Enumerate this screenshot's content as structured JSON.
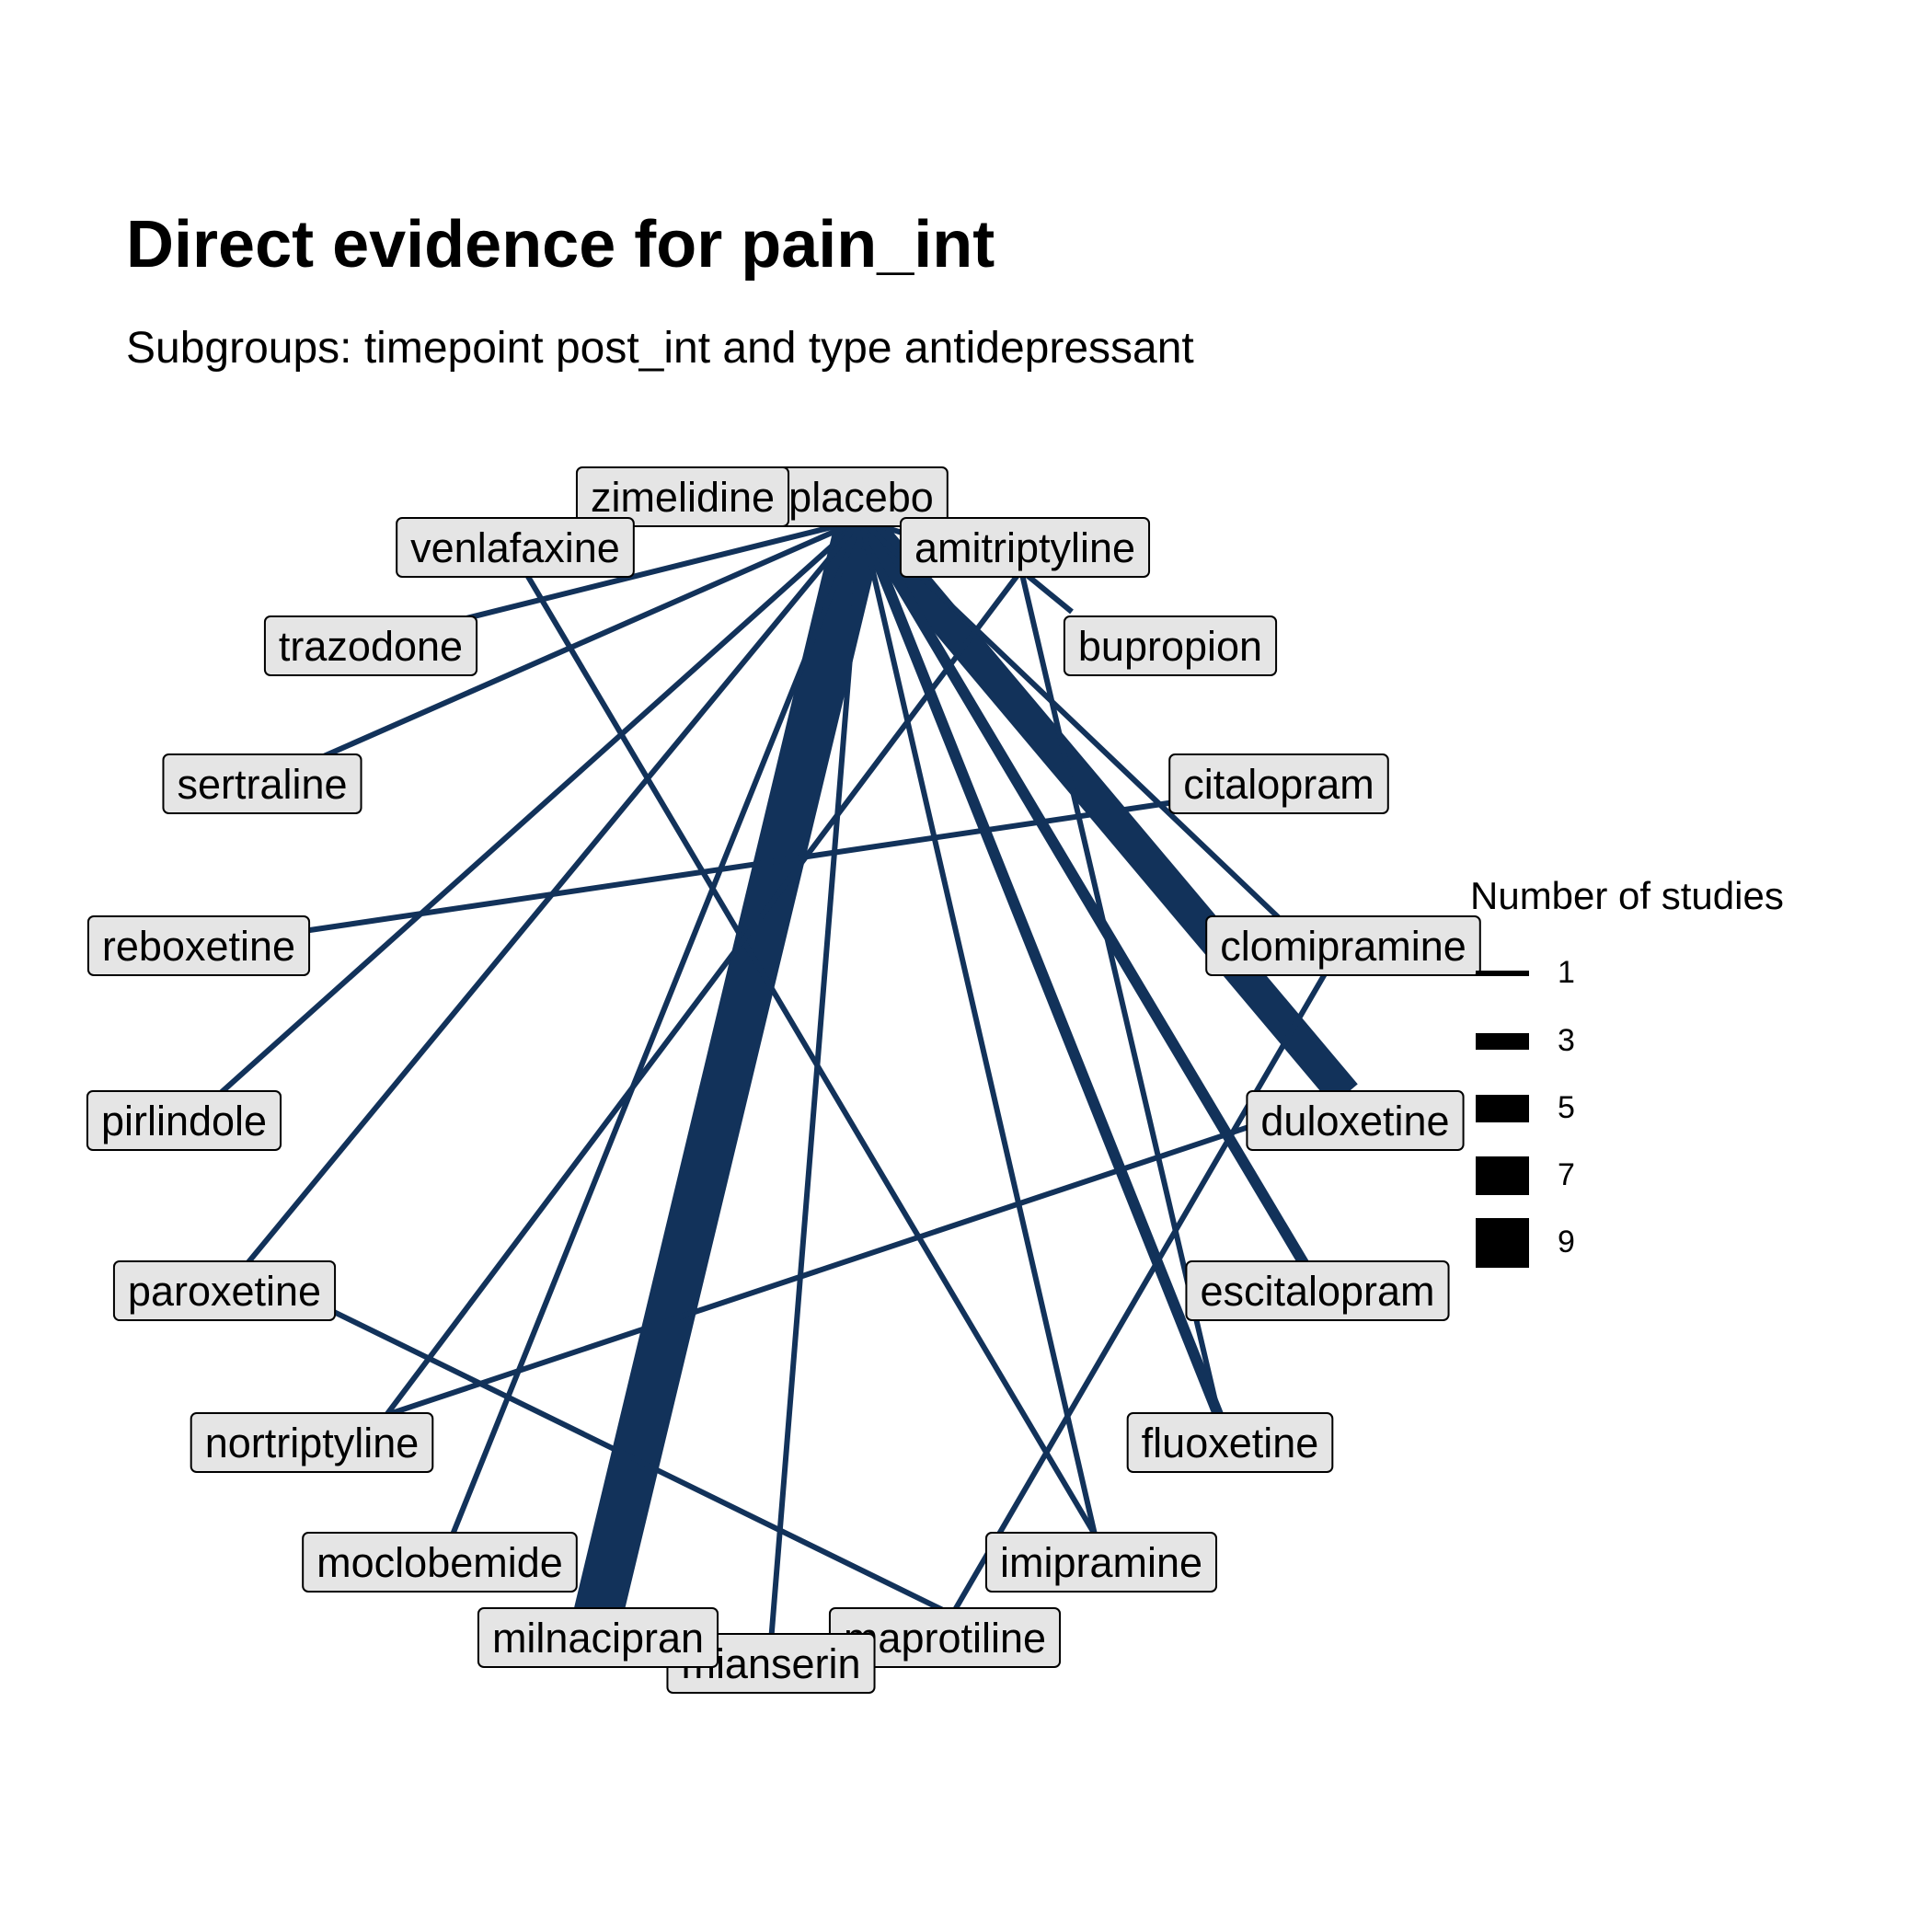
{
  "title": "Direct evidence for pain_int",
  "subtitle": "Subgroups: timepoint post_int and type antidepressant",
  "edge_color": "#12325a",
  "label_fill": "#e5e5e5",
  "legend": {
    "title": "Number of studies",
    "entries": [
      "1",
      "3",
      "5",
      "7",
      "9"
    ]
  },
  "nodes": [
    {
      "id": "placebo",
      "label": "placebo"
    },
    {
      "id": "zimelidine",
      "label": "zimelidine"
    },
    {
      "id": "venlafaxine",
      "label": "venlafaxine"
    },
    {
      "id": "amitriptyline",
      "label": "amitriptyline"
    },
    {
      "id": "trazodone",
      "label": "trazodone"
    },
    {
      "id": "bupropion",
      "label": "bupropion"
    },
    {
      "id": "sertraline",
      "label": "sertraline"
    },
    {
      "id": "citalopram",
      "label": "citalopram"
    },
    {
      "id": "reboxetine",
      "label": "reboxetine"
    },
    {
      "id": "clomipramine",
      "label": "clomipramine"
    },
    {
      "id": "pirlindole",
      "label": "pirlindole"
    },
    {
      "id": "duloxetine",
      "label": "duloxetine"
    },
    {
      "id": "paroxetine",
      "label": "paroxetine"
    },
    {
      "id": "escitalopram",
      "label": "escitalopram"
    },
    {
      "id": "nortriptyline",
      "label": "nortriptyline"
    },
    {
      "id": "fluoxetine",
      "label": "fluoxetine"
    },
    {
      "id": "moclobemide",
      "label": "moclobemide"
    },
    {
      "id": "imipramine",
      "label": "imipramine"
    },
    {
      "id": "milnacipran",
      "label": "milnacipran"
    },
    {
      "id": "maprotiline",
      "label": "maprotiline"
    },
    {
      "id": "mianserin",
      "label": "mianserin"
    }
  ],
  "edges": [
    {
      "from": "placebo",
      "to": "milnacipran",
      "studies": 9
    },
    {
      "from": "placebo",
      "to": "duloxetine",
      "studies": 6
    },
    {
      "from": "placebo",
      "to": "fluoxetine",
      "studies": 2
    },
    {
      "from": "placebo",
      "to": "escitalopram",
      "studies": 2
    },
    {
      "from": "placebo",
      "to": "amitriptyline",
      "studies": 1
    },
    {
      "from": "placebo",
      "to": "trazodone",
      "studies": 1
    },
    {
      "from": "placebo",
      "to": "sertraline",
      "studies": 1
    },
    {
      "from": "placebo",
      "to": "pirlindole",
      "studies": 1
    },
    {
      "from": "placebo",
      "to": "paroxetine",
      "studies": 1
    },
    {
      "from": "placebo",
      "to": "moclobemide",
      "studies": 1
    },
    {
      "from": "placebo",
      "to": "mianserin",
      "studies": 1
    },
    {
      "from": "placebo",
      "to": "imipramine",
      "studies": 1
    },
    {
      "from": "placebo",
      "to": "clomipramine",
      "studies": 1
    },
    {
      "from": "venlafaxine",
      "to": "imipramine",
      "studies": 1
    },
    {
      "from": "amitriptyline",
      "to": "nortriptyline",
      "studies": 1
    },
    {
      "from": "amitriptyline",
      "to": "bupropion",
      "studies": 1
    },
    {
      "from": "amitriptyline",
      "to": "fluoxetine",
      "studies": 1
    },
    {
      "from": "citalopram",
      "to": "reboxetine",
      "studies": 1
    },
    {
      "from": "clomipramine",
      "to": "maprotiline",
      "studies": 1
    },
    {
      "from": "duloxetine",
      "to": "nortriptyline",
      "studies": 1
    },
    {
      "from": "paroxetine",
      "to": "maprotiline",
      "studies": 1
    }
  ]
}
